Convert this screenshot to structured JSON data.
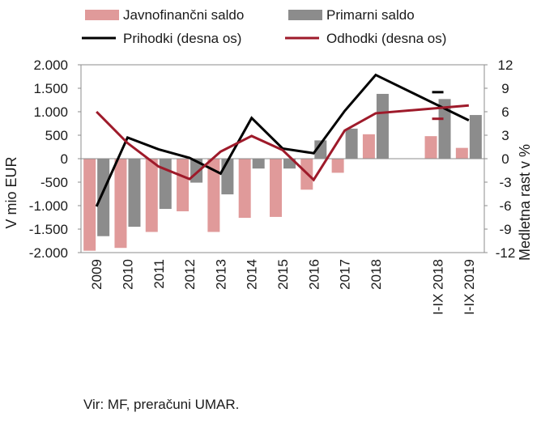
{
  "chart_data": {
    "type": "bar",
    "categories": [
      "2009",
      "2010",
      "2011",
      "2012",
      "2013",
      "2014",
      "2015",
      "2016",
      "2017",
      "2018",
      "",
      "I-IX 2018",
      "I-IX 2019"
    ],
    "series": [
      {
        "name": "Javnofinančni saldo",
        "type": "bar",
        "axis": "left",
        "color": "#e09a9a",
        "values": [
          -1960,
          -1900,
          -1560,
          -1120,
          -1560,
          -1260,
          -1240,
          -660,
          -300,
          520,
          null,
          480,
          230
        ]
      },
      {
        "name": "Primarni saldo",
        "type": "bar",
        "axis": "left",
        "color": "#8c8c8c",
        "values": [
          -1650,
          -1450,
          -1070,
          -510,
          -760,
          -210,
          -210,
          390,
          640,
          1380,
          null,
          1270,
          930
        ]
      },
      {
        "name": "Prihodki (desna os)",
        "type": "line",
        "axis": "right",
        "color": "#000000",
        "values": [
          -6.1,
          2.7,
          1.2,
          0.1,
          -1.9,
          5.2,
          1.3,
          0.7,
          6.1,
          10.7,
          null,
          8.5,
          4.9
        ]
      },
      {
        "name": "Odhodki (desna os)",
        "type": "line",
        "axis": "right",
        "color": "#9e1a2a",
        "values": [
          6.0,
          2.0,
          -1.0,
          -2.6,
          0.9,
          2.9,
          1.1,
          -2.7,
          3.6,
          5.8,
          null,
          5.1,
          6.8
        ]
      }
    ],
    "ylabel": "V mio EUR",
    "y2label": "Medletna rast v %",
    "ylim": [
      -2000,
      2000
    ],
    "y2lim": [
      -12,
      12
    ],
    "yticks": [
      "2.000",
      "1.500",
      "1.000",
      "500",
      "0",
      "-500",
      "-1.000",
      "-1.500",
      "-2.000"
    ],
    "y2ticks": [
      "12",
      "9",
      "6",
      "3",
      "0",
      "-3",
      "-6",
      "-9",
      "-12"
    ],
    "legend": "top",
    "grid": false
  },
  "source": "Vir: MF, preračuni UMAR."
}
